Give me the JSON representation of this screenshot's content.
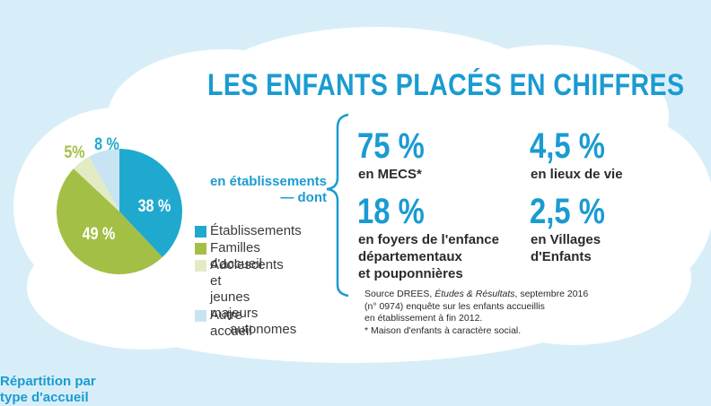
{
  "title": "LES ENFANTS PLACÉS EN CHIFFRES",
  "subtitle": "Répartition par type d'accueil",
  "establishments_label": "en établissements",
  "establishments_suffix": "dont",
  "stats": [
    {
      "value": "75 %",
      "desc": "en MECS*"
    },
    {
      "value": "4,5 %",
      "desc": "en lieux de vie"
    },
    {
      "value": "18 %",
      "desc_lines": [
        "en foyers de l'enfance",
        "départementaux",
        "et pouponnières"
      ]
    },
    {
      "value": "2,5 %",
      "desc_lines": [
        "en Villages",
        "d'Enfants"
      ]
    }
  ],
  "source": {
    "line1_prefix": "Source DREES, ",
    "line1_italic": "Études & Résultats",
    "line1_suffix": ", septembre 2016",
    "line2": "(n° 0974) enquête sur les enfants accueillis",
    "line3": "en établissement à fin 2012.",
    "line4": "* Maison d'enfants à caractère social."
  },
  "colors": {
    "accent": "#1a9bd1",
    "establishments": "#20a9cf",
    "foster": "#a4bf45",
    "teens": "#e3ebc5",
    "other": "#c8e4f2",
    "background": "#d7eef9",
    "cloud": "#ffffff"
  },
  "chart_data": {
    "type": "pie",
    "title": "",
    "slices": [
      {
        "name": "Établissements",
        "value": 38,
        "label": "38 %",
        "color": "#20a9cf"
      },
      {
        "name": "Familles d'accueil",
        "value": 49,
        "label": "49 %",
        "color": "#a4bf45"
      },
      {
        "name": "Adolescents et jeunes majeurs autonomes",
        "value": 5,
        "label": "5%",
        "color": "#e3ebc5"
      },
      {
        "name": "Autre accueil",
        "value": 8,
        "label": "8 %",
        "color": "#c8e4f2"
      }
    ],
    "legend": {
      "placement": "right",
      "items": [
        {
          "lines": [
            "Établissements"
          ],
          "color": "#20a9cf"
        },
        {
          "lines": [
            "Familles d'accueil"
          ],
          "color": "#a4bf45"
        },
        {
          "lines": [
            "Adolescents et",
            "jeunes majeurs",
            "autonomes"
          ],
          "color": "#e3ebc5"
        },
        {
          "lines": [
            "Autre accueil"
          ],
          "color": "#c8e4f2"
        }
      ]
    }
  }
}
